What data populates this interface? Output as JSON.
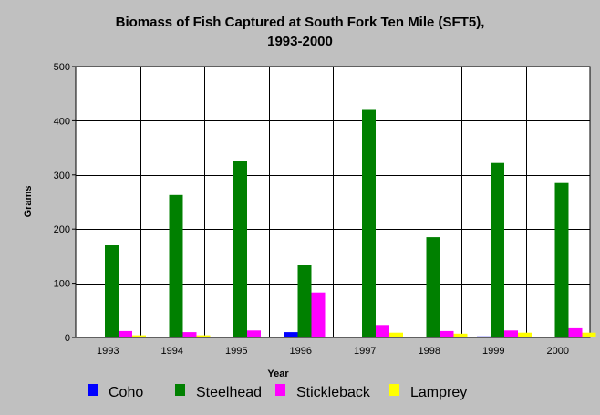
{
  "chart_data": {
    "type": "bar",
    "title_lines": [
      "Biomass of Fish Captured at South Fork Ten Mile (SFT5),",
      "1993-2000"
    ],
    "xlabel": "Year",
    "ylabel": "Grams",
    "categories": [
      "1993",
      "1994",
      "1995",
      "1996",
      "1997",
      "1998",
      "1999",
      "2000"
    ],
    "yticks": [
      0,
      100,
      200,
      300,
      400,
      500
    ],
    "ylim": [
      0,
      500
    ],
    "grid": true,
    "legend_position": "bottom",
    "series": [
      {
        "name": "Coho",
        "color": "#0000ff",
        "values": [
          0,
          0,
          0,
          10,
          0,
          0,
          2,
          0
        ]
      },
      {
        "name": "Steelhead",
        "color": "#008000",
        "values": [
          170,
          263,
          325,
          134,
          420,
          185,
          322,
          285
        ]
      },
      {
        "name": "Stickleback",
        "color": "#ff00ff",
        "values": [
          12,
          10,
          13,
          83,
          23,
          12,
          13,
          17
        ]
      },
      {
        "name": "Lamprey",
        "color": "#ffff00",
        "values": [
          4,
          4,
          0,
          0,
          9,
          7,
          9,
          9
        ]
      }
    ]
  }
}
